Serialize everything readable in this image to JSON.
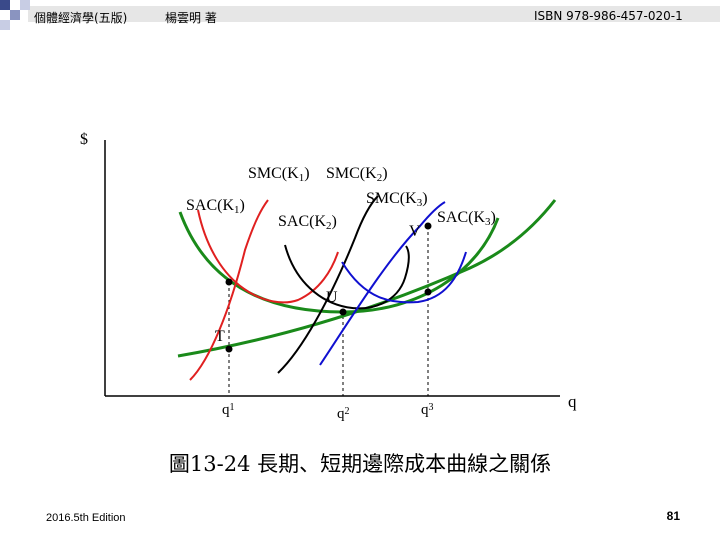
{
  "header": {
    "title": "個體經濟學(五版)",
    "author": "楊雲明 著",
    "isbn": "ISBN 978-986-457-020-1"
  },
  "diagram": {
    "y_axis_label": "$",
    "x_axis_label": "q",
    "curve_labels": {
      "smc1": "SMC(K1)",
      "smc2": "SMC(K2)",
      "smc3": "SMC(K3)",
      "sac1": "SAC(K1)",
      "sac2": "SAC(K2)",
      "sac3": "SAC(K3)"
    },
    "point_labels": {
      "t": "T",
      "u": "U",
      "v": "V"
    },
    "x_ticks": {
      "q1": "q1",
      "q2": "q2",
      "q3": "q3"
    },
    "colors": {
      "k1": "#e02020",
      "k2": "#000000",
      "k3": "#1010d0",
      "long_run": "#1a8a1a"
    }
  },
  "caption": "圖13-24 長期、短期邊際成本曲線之關係",
  "footer": {
    "edition": "2016.5th Edition",
    "page": "81"
  }
}
